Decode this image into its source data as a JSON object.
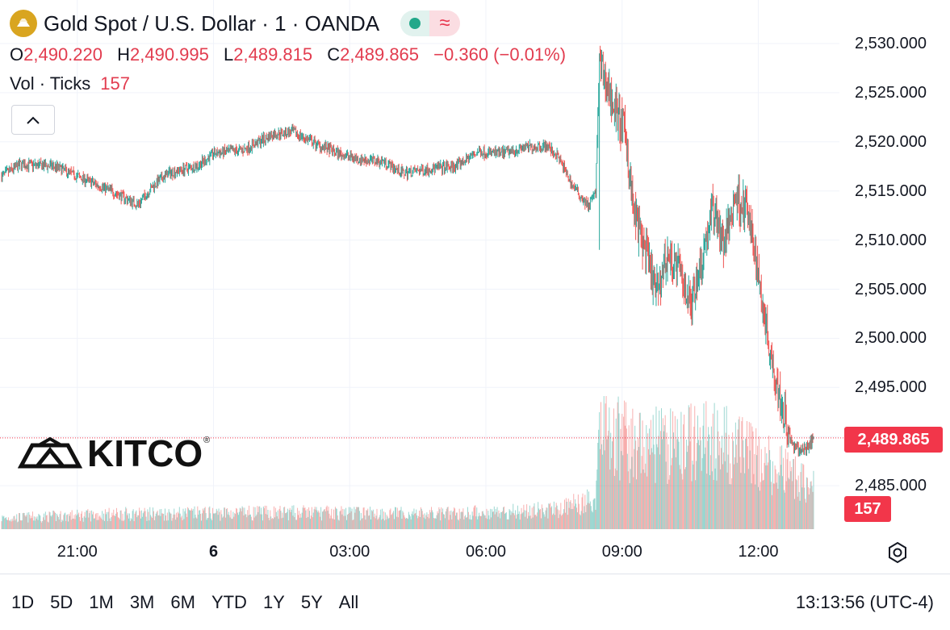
{
  "header": {
    "symbol_title": "Gold Spot / U.S. Dollar · 1 · OANDA",
    "status_icon": "green-dot-icon",
    "replay_icon": "wave-icon",
    "replay_glyph": "≈",
    "ohlc": {
      "o_label": "O",
      "o": "2,490.220",
      "h_label": "H",
      "h": "2,490.995",
      "l_label": "L",
      "l": "2,489.815",
      "c_label": "C",
      "c": "2,489.865",
      "change": "−0.360 (−0.01%)"
    },
    "volume": {
      "label": "Vol · Ticks",
      "value": "157"
    }
  },
  "watermark": {
    "brand": "KITCO",
    "mark": "®"
  },
  "axis": {
    "y_ticks": [
      "2,530.000",
      "2,525.000",
      "2,520.000",
      "2,515.000",
      "2,510.000",
      "2,505.000",
      "2,500.000",
      "2,495.000",
      "2,485.000"
    ],
    "x_ticks": [
      {
        "label": "21:00",
        "bold": false
      },
      {
        "label": "6",
        "bold": true
      },
      {
        "label": "03:00",
        "bold": false
      },
      {
        "label": "06:00",
        "bold": false
      },
      {
        "label": "09:00",
        "bold": false
      },
      {
        "label": "12:00",
        "bold": false
      }
    ],
    "last_price": "2,489.865",
    "last_volume": "157",
    "settings_icon": "hexagon-gear-icon"
  },
  "bottom_bar": {
    "ranges": [
      "1D",
      "5D",
      "1M",
      "3M",
      "6M",
      "YTD",
      "1Y",
      "5Y",
      "All"
    ],
    "clock": "13:13:56 (UTC-4)"
  },
  "colors": {
    "up": "#26a69a",
    "down": "#ef5350",
    "price_tag": "#f2364a",
    "coin": "#d9a520"
  },
  "chart_data": {
    "type": "candlestick",
    "interval": "1 minute",
    "ylim": [
      2482.5,
      2533.5
    ],
    "x_labels": [
      "21:00",
      "6",
      "03:00",
      "06:00",
      "09:00",
      "12:00"
    ],
    "price_path": [
      {
        "t": "19:20",
        "p": 2516.5
      },
      {
        "t": "19:45",
        "p": 2517.7
      },
      {
        "t": "20:30",
        "p": 2517.5
      },
      {
        "t": "21:00",
        "p": 2516.5
      },
      {
        "t": "21:45",
        "p": 2515.0
      },
      {
        "t": "22:20",
        "p": 2513.6
      },
      {
        "t": "22:40",
        "p": 2515.5
      },
      {
        "t": "23:00",
        "p": 2516.8
      },
      {
        "t": "23:40",
        "p": 2517.6
      },
      {
        "t": "00:00",
        "p": 2518.8
      },
      {
        "t": "00:40",
        "p": 2519.2
      },
      {
        "t": "01:20",
        "p": 2520.8
      },
      {
        "t": "01:45",
        "p": 2521.0
      },
      {
        "t": "02:15",
        "p": 2519.8
      },
      {
        "t": "02:45",
        "p": 2518.8
      },
      {
        "t": "03:15",
        "p": 2518.2
      },
      {
        "t": "03:45",
        "p": 2518.0
      },
      {
        "t": "04:10",
        "p": 2516.8
      },
      {
        "t": "04:40",
        "p": 2517.2
      },
      {
        "t": "05:20",
        "p": 2517.5
      },
      {
        "t": "05:50",
        "p": 2519.0
      },
      {
        "t": "06:20",
        "p": 2518.8
      },
      {
        "t": "06:50",
        "p": 2519.4
      },
      {
        "t": "07:20",
        "p": 2519.6
      },
      {
        "t": "07:35",
        "p": 2518.5
      },
      {
        "t": "07:55",
        "p": 2515.5
      },
      {
        "t": "08:15",
        "p": 2513.5
      },
      {
        "t": "08:25",
        "p": 2514.8
      },
      {
        "t": "08:30",
        "p": 2527.8
      },
      {
        "t": "08:50",
        "p": 2523.5
      },
      {
        "t": "09:05",
        "p": 2520.5
      },
      {
        "t": "09:15",
        "p": 2513.0
      },
      {
        "t": "09:30",
        "p": 2509.0
      },
      {
        "t": "09:45",
        "p": 2504.5
      },
      {
        "t": "10:00",
        "p": 2508.5
      },
      {
        "t": "10:15",
        "p": 2507.0
      },
      {
        "t": "10:30",
        "p": 2503.5
      },
      {
        "t": "10:45",
        "p": 2508.0
      },
      {
        "t": "11:00",
        "p": 2513.5
      },
      {
        "t": "11:15",
        "p": 2509.5
      },
      {
        "t": "11:30",
        "p": 2514.5
      },
      {
        "t": "11:45",
        "p": 2513.0
      },
      {
        "t": "12:00",
        "p": 2506.5
      },
      {
        "t": "12:15",
        "p": 2499.0
      },
      {
        "t": "12:30",
        "p": 2493.5
      },
      {
        "t": "12:45",
        "p": 2489.0
      },
      {
        "t": "13:00",
        "p": 2488.5
      },
      {
        "t": "13:13",
        "p": 2489.865
      }
    ],
    "volume_profile": [
      {
        "t": "19:20",
        "v": 40
      },
      {
        "t": "22:00",
        "v": 55
      },
      {
        "t": "02:00",
        "v": 60
      },
      {
        "t": "05:00",
        "v": 55
      },
      {
        "t": "07:30",
        "v": 70
      },
      {
        "t": "08:25",
        "v": 110
      },
      {
        "t": "08:30",
        "v": 400
      },
      {
        "t": "09:00",
        "v": 320
      },
      {
        "t": "10:00",
        "v": 300
      },
      {
        "t": "11:00",
        "v": 330
      },
      {
        "t": "12:00",
        "v": 250
      },
      {
        "t": "13:13",
        "v": 157
      }
    ]
  }
}
